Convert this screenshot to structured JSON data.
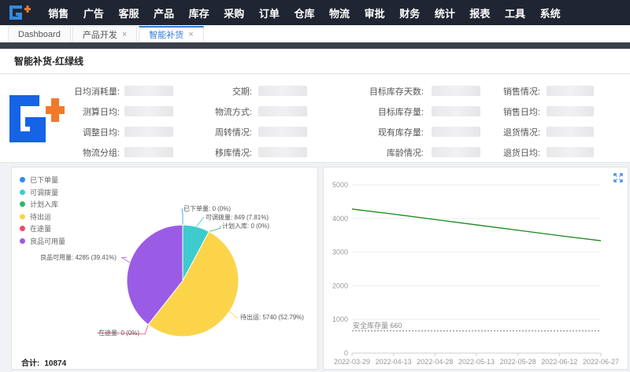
{
  "nav": {
    "items": [
      "销售",
      "广告",
      "客服",
      "产品",
      "库存",
      "采购",
      "订单",
      "仓库",
      "物流",
      "审批",
      "财务",
      "统计",
      "报表",
      "工具",
      "系统"
    ]
  },
  "tabs": [
    {
      "label": "Dashboard",
      "closable": false,
      "active": false
    },
    {
      "label": "产品开发",
      "closable": true,
      "active": false
    },
    {
      "label": "智能补货",
      "closable": true,
      "active": true
    }
  ],
  "page": {
    "title": "智能补货-红绿线"
  },
  "fields": [
    [
      "日均消耗量:",
      "交期:",
      "目标库存天数:",
      "销售情况:"
    ],
    [
      "测算日均:",
      "物流方式:",
      "目标库存量:",
      "销售日均:"
    ],
    [
      "调整日均:",
      "周转情况:",
      "现有库存量:",
      "退货情况:"
    ],
    [
      "物流分组:",
      "移库情况:",
      "库龄情况:",
      "退货日均:"
    ]
  ],
  "pie": {
    "legend": [
      {
        "label": "已下单量",
        "color": "#2f8be3"
      },
      {
        "label": "可调拨量",
        "color": "#3ecbcd"
      },
      {
        "label": "计划入库",
        "color": "#2eb66b"
      },
      {
        "label": "待出运",
        "color": "#fbd44a"
      },
      {
        "label": "在途量",
        "color": "#ef4a6d"
      },
      {
        "label": "良品可用量",
        "color": "#9b5ce5"
      }
    ],
    "total_label": "合计:",
    "total_value": "10874"
  },
  "chart_data": [
    {
      "type": "pie",
      "slices": [
        {
          "label": "已下单量",
          "value": 0,
          "percent": 0,
          "text": "已下单量: 0 (0%)",
          "color": "#2f8be3"
        },
        {
          "label": "可调拨量",
          "value": 849,
          "percent": 7.81,
          "text": "可调拨量: 849 (7.81%)",
          "color": "#3ecbcd"
        },
        {
          "label": "计划入库",
          "value": 0,
          "percent": 0,
          "text": "计划入库: 0 (0%)",
          "color": "#2eb66b"
        },
        {
          "label": "待出运",
          "value": 5740,
          "percent": 52.79,
          "text": "待出运: 5740 (52.79%)",
          "color": "#fbd44a"
        },
        {
          "label": "在途量",
          "value": 0,
          "percent": 0,
          "text": "在途量: 0 (0%)",
          "color": "#ef4a6d"
        },
        {
          "label": "良品可用量",
          "value": 4285,
          "percent": 39.41,
          "text": "良品可用量: 4285 (39.41%)",
          "color": "#9b5ce5"
        }
      ]
    },
    {
      "type": "line",
      "x": [
        "2022-03-29",
        "2022-04-13",
        "2022-04-28",
        "2022-05-13",
        "2022-05-28",
        "2022-06-12",
        "2022-06-27"
      ],
      "yticks": [
        "0",
        "1000",
        "2000",
        "3000",
        "4000",
        "5000"
      ],
      "ylim": [
        0,
        5000
      ],
      "series": [
        {
          "values": [
            4280,
            4130,
            3970,
            3810,
            3650,
            3490,
            3340
          ],
          "color": "#178a1a"
        }
      ],
      "reference": {
        "value": 660,
        "label": "安全库存量 660"
      }
    }
  ],
  "expand_icon": "expand-icon"
}
